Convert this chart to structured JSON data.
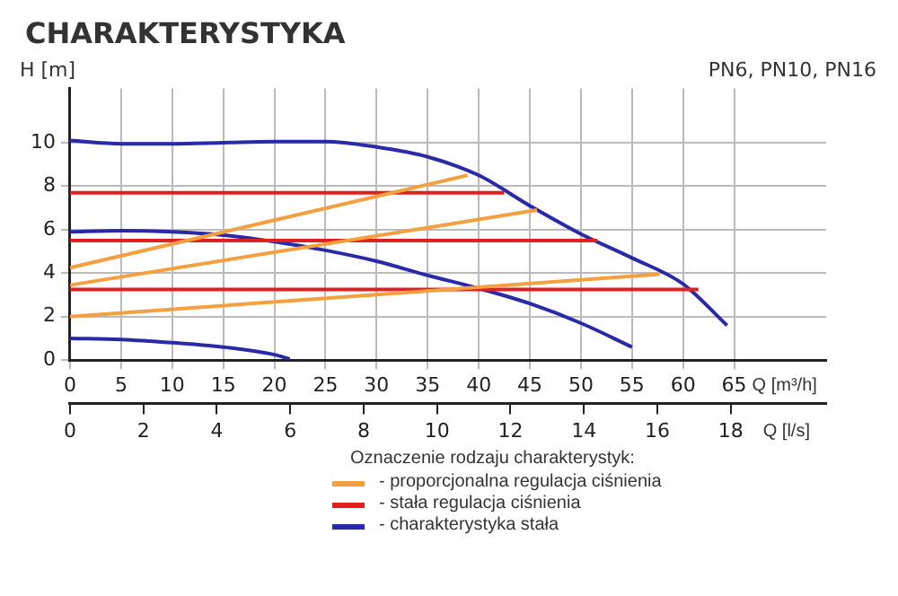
{
  "chart_data": {
    "type": "line",
    "title": "CHARAKTERYSTYKA",
    "annotations": [
      "PN6, PN10, PN16"
    ],
    "ylabel": "H [m]",
    "xlabel": "Q [m³/h]",
    "x2label": "Q [l/s]",
    "legend_title": "Oznaczenie rodzaju charakterystyk:",
    "legend": "bottom",
    "grid": true,
    "marker": "none",
    "line_style": "solid",
    "xlim": [
      0,
      74
    ],
    "xticks": [
      0,
      5,
      10,
      15,
      20,
      25,
      30,
      35,
      40,
      45,
      50,
      55,
      60,
      65
    ],
    "x2lim": [
      0,
      20.6
    ],
    "x2ticks": [
      0,
      2,
      4,
      6,
      8,
      10,
      12,
      14,
      16,
      18
    ],
    "ylim": [
      0,
      12.5
    ],
    "yticks": [
      0,
      2,
      4,
      6,
      8,
      10
    ],
    "series": [
      {
        "name": "- proporcjonalna regulacja ciśnienia",
        "color": "#f5a040",
        "x": [
          0,
          38.9,
          null,
          0,
          45.7,
          null,
          0,
          57.7
        ],
        "values": [
          4.25,
          8.5,
          null,
          3.45,
          6.9,
          null,
          2.0,
          3.95
        ]
      },
      {
        "name": "- stała regulacja ciśnienia",
        "color": "#e02020",
        "x": [
          0,
          42.5,
          null,
          0,
          51.6,
          null,
          0,
          61.5
        ],
        "values": [
          7.7,
          7.7,
          null,
          5.5,
          5.5,
          null,
          3.25,
          3.25
        ]
      },
      {
        "name": "- charakterystyka stała",
        "color": "#2a2aa8",
        "x": [
          0,
          5,
          10,
          15,
          20,
          25,
          30,
          35,
          40,
          45,
          50,
          55,
          60,
          64.3,
          null,
          0,
          5,
          10,
          15,
          20,
          25,
          30,
          35,
          40,
          45,
          50,
          55,
          null,
          0,
          5,
          10,
          15,
          20,
          21.5
        ],
        "values": [
          10.1,
          9.95,
          9.95,
          10.0,
          10.05,
          10.05,
          9.8,
          9.35,
          8.5,
          7.1,
          5.8,
          4.7,
          3.5,
          1.6,
          null,
          5.9,
          5.95,
          5.9,
          5.75,
          5.45,
          5.05,
          4.55,
          3.9,
          3.3,
          2.6,
          1.7,
          0.6,
          null,
          1.0,
          0.95,
          0.8,
          0.6,
          0.25,
          0.05
        ]
      }
    ]
  }
}
